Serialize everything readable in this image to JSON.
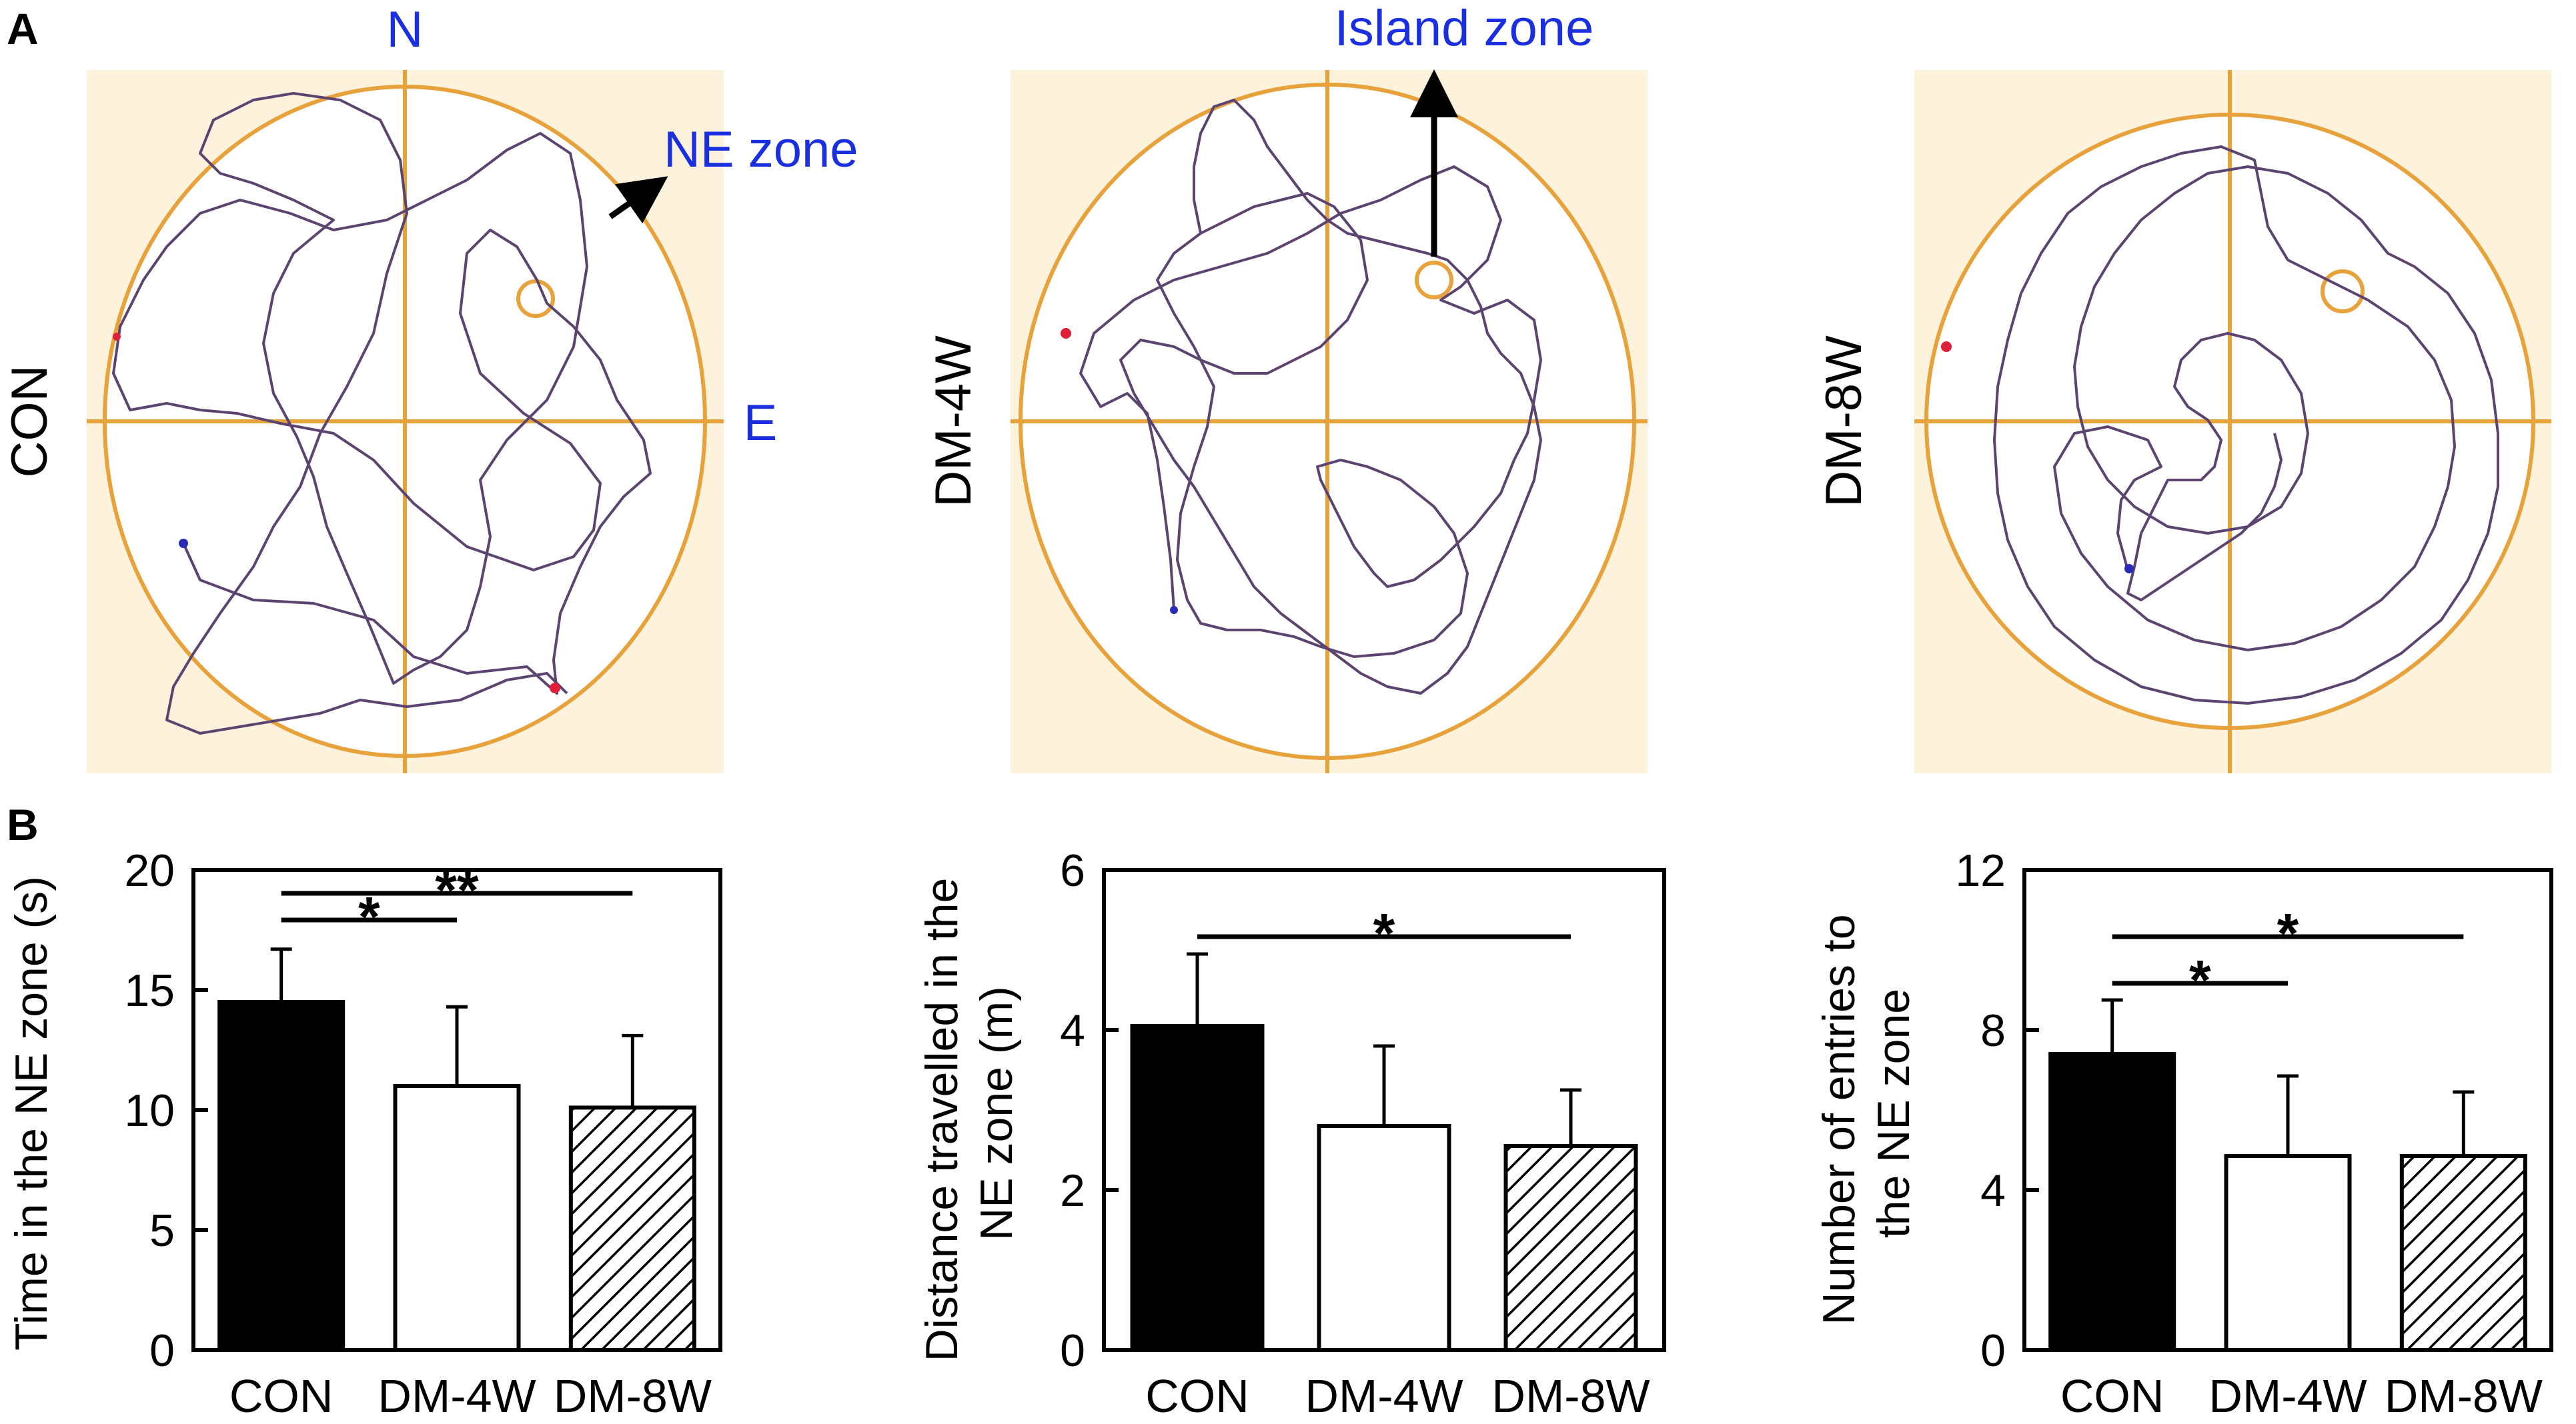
{
  "panel_labels": {
    "a": "A",
    "b": "B"
  },
  "colors": {
    "arena_bg": "#fdf3dc",
    "arena_line": "#e8a23c",
    "path": "#5b4470",
    "annotation_text": "#1a2fe0",
    "start_dot": "#2b2bb8",
    "end_dot": "#e0203a",
    "bar_black": "#000000",
    "bar_white": "#ffffff"
  },
  "annotations": {
    "north": "N",
    "east": "E",
    "ne_zone": "NE zone",
    "island_zone": "Island zone"
  },
  "tracks": [
    {
      "group": "CON"
    },
    {
      "group": "DM-4W"
    },
    {
      "group": "DM-8W"
    }
  ],
  "chart_data": [
    {
      "type": "bar",
      "categories": [
        "CON",
        "DM-4W",
        "DM-8W"
      ],
      "values": [
        14.5,
        11.0,
        10.1
      ],
      "errors": [
        2.2,
        3.3,
        3.0
      ],
      "fills": [
        "black",
        "white",
        "hatch"
      ],
      "ylabel": "Time in the NE zone (s)",
      "xlabel": "",
      "ylim": [
        0,
        20
      ],
      "yticks": [
        0,
        5,
        10,
        15,
        20
      ],
      "significance": [
        {
          "from": "CON",
          "to": "DM-4W",
          "label": "*"
        },
        {
          "from": "CON",
          "to": "DM-8W",
          "label": "**"
        }
      ]
    },
    {
      "type": "bar",
      "categories": [
        "CON",
        "DM-4W",
        "DM-8W"
      ],
      "values": [
        4.05,
        2.8,
        2.55
      ],
      "errors": [
        0.9,
        1.0,
        0.7
      ],
      "fills": [
        "black",
        "white",
        "hatch"
      ],
      "ylabel_lines": [
        "Distance travelled in the",
        "NE zone (m)"
      ],
      "xlabel": "",
      "ylim": [
        0,
        6
      ],
      "yticks": [
        0,
        2,
        4,
        6
      ],
      "significance": [
        {
          "from": "CON",
          "to": "DM-8W",
          "label": "*"
        }
      ]
    },
    {
      "type": "bar",
      "categories": [
        "CON",
        "DM-4W",
        "DM-8W"
      ],
      "values": [
        7.4,
        4.85,
        4.85
      ],
      "errors": [
        1.35,
        2.0,
        1.6
      ],
      "fills": [
        "black",
        "white",
        "hatch"
      ],
      "ylabel_lines": [
        "Number of entries to",
        "the NE zone"
      ],
      "xlabel": "",
      "ylim": [
        0,
        12
      ],
      "yticks": [
        0,
        4,
        8,
        12
      ],
      "significance": [
        {
          "from": "CON",
          "to": "DM-4W",
          "label": "*"
        },
        {
          "from": "CON",
          "to": "DM-8W",
          "label": "*"
        }
      ]
    }
  ]
}
